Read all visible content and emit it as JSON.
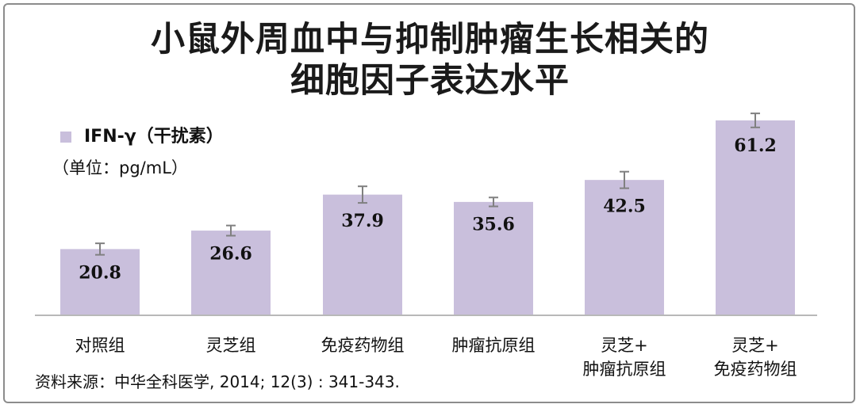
{
  "title_lines": [
    "小鼠外周血中与抑制肿瘤生长相关的",
    "细胞因子表达水平"
  ],
  "legend_label": "IFN-γ（干扰素）",
  "unit_label": "（单位：pg/mL）",
  "source": "资料来源：中华全科医学, 2014; 12(3) : 341-343.",
  "colors": {
    "bar": "#c9bfdc",
    "error_bar": "#808080",
    "axis": "#b8b8b8",
    "text": "#111111"
  },
  "chart_data": {
    "type": "bar",
    "categories": [
      [
        "对照组"
      ],
      [
        "灵芝组"
      ],
      [
        "免疫药物组"
      ],
      [
        "肿瘤抗原组"
      ],
      [
        "灵芝+",
        "肿瘤抗原组"
      ],
      [
        "灵芝+",
        "免疫药物组"
      ]
    ],
    "series": [
      {
        "name": "IFN-γ（干扰素）",
        "values": [
          20.8,
          26.6,
          37.9,
          35.6,
          42.5,
          61.2
        ],
        "errors": [
          1.8,
          1.6,
          2.6,
          1.4,
          2.6,
          2.2
        ]
      }
    ],
    "value_labels": [
      "20.8",
      "26.6",
      "37.9",
      "35.6",
      "42.5",
      "61.2"
    ],
    "ylim": [
      0,
      70
    ],
    "grid": false,
    "legend_position": "top-left"
  }
}
